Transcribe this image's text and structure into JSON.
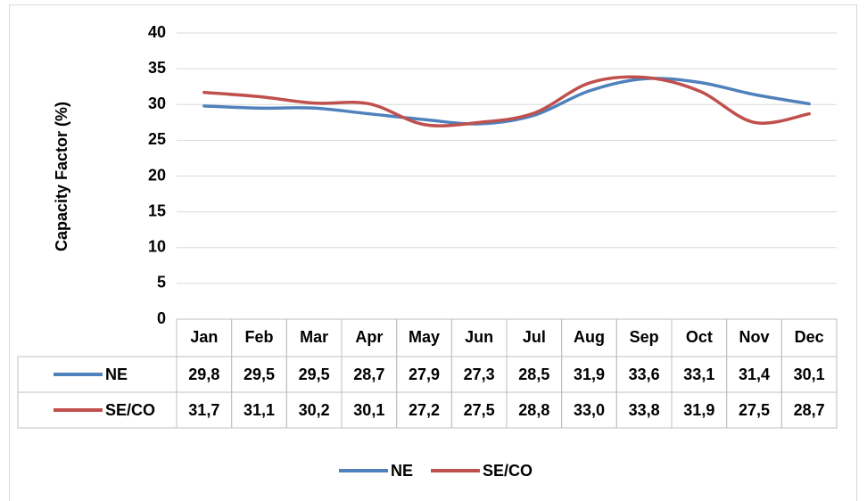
{
  "chart_data": {
    "type": "line",
    "y_label": "Capacity Factor (%)",
    "categories": [
      "Jan",
      "Feb",
      "Mar",
      "Apr",
      "May",
      "Jun",
      "Jul",
      "Aug",
      "Sep",
      "Oct",
      "Nov",
      "Dec"
    ],
    "series": [
      {
        "name": "NE",
        "color": "#4f81bd",
        "values": [
          29.8,
          29.5,
          29.5,
          28.7,
          27.9,
          27.3,
          28.5,
          31.9,
          33.6,
          33.1,
          31.4,
          30.1
        ],
        "value_labels": [
          "29,8",
          "29,5",
          "29,5",
          "28,7",
          "27,9",
          "27,3",
          "28,5",
          "31,9",
          "33,6",
          "33,1",
          "31,4",
          "30,1"
        ]
      },
      {
        "name": "SE/CO",
        "color": "#c0504d",
        "values": [
          31.7,
          31.1,
          30.2,
          30.1,
          27.2,
          27.5,
          28.8,
          33.0,
          33.8,
          31.9,
          27.5,
          28.7
        ],
        "value_labels": [
          "31,7",
          "31,1",
          "30,2",
          "30,1",
          "27,2",
          "27,5",
          "28,8",
          "33,0",
          "33,8",
          "31,9",
          "27,5",
          "28,7"
        ]
      }
    ],
    "ylim": [
      0,
      40
    ],
    "yticks": [
      0,
      5,
      10,
      15,
      20,
      25,
      30,
      35,
      40
    ],
    "grid": true,
    "smooth": true,
    "data_table": true,
    "legend": "bottom"
  }
}
